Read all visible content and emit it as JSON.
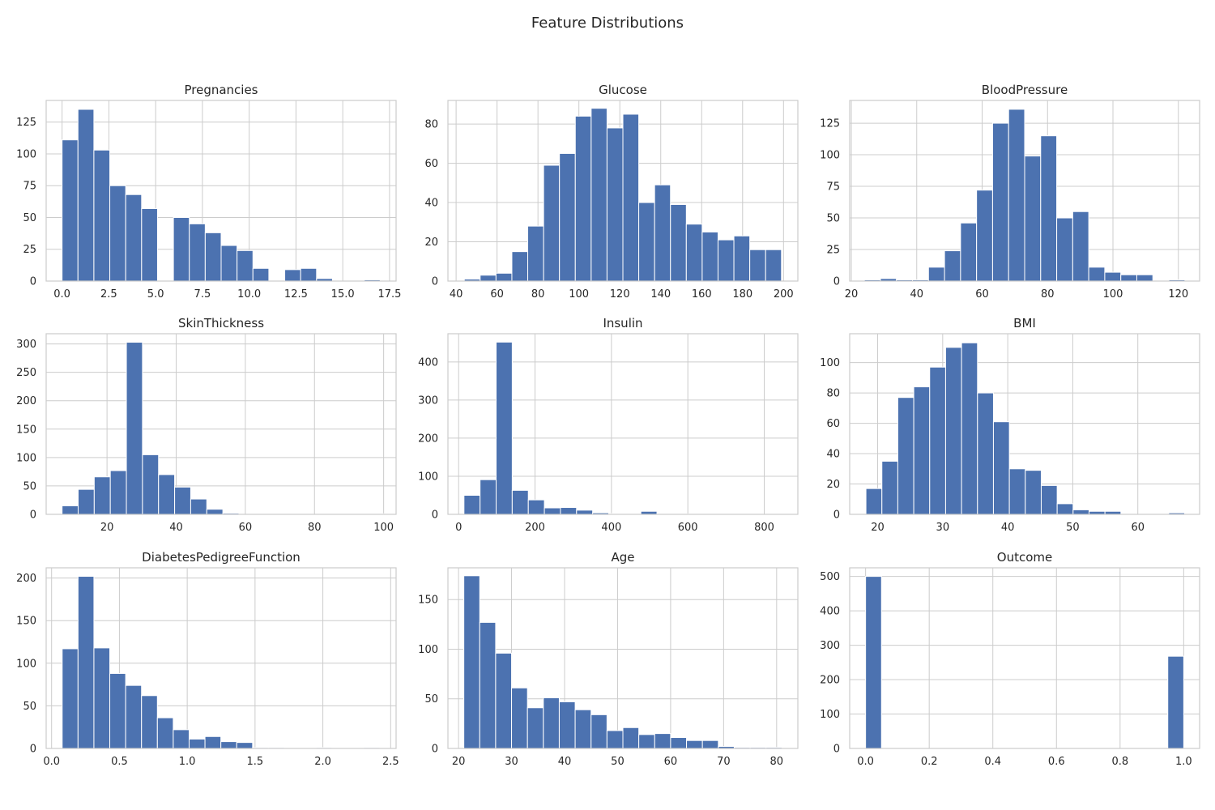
{
  "title": "Feature Distributions",
  "colors": {
    "bar": "#4c72b0",
    "grid": "#cccccc",
    "text": "#262626"
  },
  "chart_data": [
    {
      "type": "bar",
      "title": "Pregnancies",
      "xlim": [
        -0.85,
        17.85
      ],
      "ylim": [
        0,
        142
      ],
      "xticks": [
        "0.0",
        "2.5",
        "5.0",
        "7.5",
        "10.0",
        "12.5",
        "15.0",
        "17.5"
      ],
      "yticks": [
        "0",
        "25",
        "50",
        "75",
        "100",
        "125"
      ],
      "bin_edges": [
        0,
        0.85,
        1.7,
        2.55,
        3.4,
        4.25,
        5.1,
        5.95,
        6.8,
        7.65,
        8.5,
        9.35,
        10.2,
        11.05,
        11.9,
        12.75,
        13.6,
        14.45,
        15.3,
        16.15,
        17.0
      ],
      "values": [
        111,
        135,
        103,
        75,
        68,
        57,
        0,
        50,
        45,
        38,
        28,
        24,
        10,
        0,
        9,
        10,
        2,
        0,
        0,
        1
      ]
    },
    {
      "type": "bar",
      "title": "Glucose",
      "xlim": [
        36.0,
        207.0
      ],
      "ylim": [
        0,
        92
      ],
      "xticks": [
        "40",
        "60",
        "80",
        "100",
        "120",
        "140",
        "160",
        "180",
        "200"
      ],
      "yticks": [
        "0",
        "20",
        "40",
        "60",
        "80"
      ],
      "bin_edges": [
        44,
        51.75,
        59.5,
        67.25,
        75,
        82.75,
        90.5,
        98.25,
        106,
        113.75,
        121.5,
        129.25,
        137,
        144.75,
        152.5,
        160.25,
        168,
        175.75,
        183.5,
        191.25,
        199
      ],
      "values": [
        1,
        3,
        4,
        15,
        28,
        59,
        65,
        84,
        88,
        78,
        85,
        40,
        49,
        39,
        29,
        25,
        21,
        23,
        16,
        16
      ]
    },
    {
      "type": "bar",
      "title": "BloodPressure",
      "xlim": [
        19.5,
        126.5
      ],
      "ylim": [
        0,
        143
      ],
      "xticks": [
        "20",
        "40",
        "60",
        "80",
        "100",
        "120"
      ],
      "yticks": [
        "0",
        "25",
        "50",
        "75",
        "100",
        "125"
      ],
      "bin_edges": [
        24,
        28.9,
        33.8,
        38.7,
        43.6,
        48.5,
        53.4,
        58.3,
        63.2,
        68.1,
        73,
        77.9,
        82.8,
        87.7,
        92.6,
        97.5,
        102.4,
        107.3,
        112.2,
        117.1,
        122
      ],
      "values": [
        1,
        2,
        1,
        1,
        11,
        24,
        46,
        72,
        125,
        136,
        99,
        115,
        50,
        55,
        11,
        7,
        5,
        5,
        0,
        1
      ]
    },
    {
      "type": "bar",
      "title": "SkinThickness",
      "xlim": [
        2.4,
        103.6
      ],
      "ylim": [
        0,
        318
      ],
      "xticks": [
        "20",
        "40",
        "60",
        "80",
        "100"
      ],
      "yticks": [
        "0",
        "50",
        "100",
        "150",
        "200",
        "250",
        "300"
      ],
      "bin_edges": [
        7,
        11.65,
        16.3,
        20.95,
        25.6,
        30.25,
        34.9,
        39.55,
        44.2,
        48.85,
        53.5,
        58.15,
        62.8,
        67.45,
        72.1,
        76.75,
        81.4,
        86.05,
        90.7,
        95.35,
        100
      ],
      "values": [
        15,
        44,
        66,
        77,
        303,
        105,
        70,
        48,
        27,
        9,
        2,
        0,
        0,
        0,
        0,
        0,
        0,
        0,
        0,
        1
      ]
    },
    {
      "type": "bar",
      "title": "Insulin",
      "xlim": [
        -28.0,
        888.0
      ],
      "ylim": [
        0,
        474
      ],
      "xticks": [
        "0",
        "200",
        "400",
        "600",
        "800"
      ],
      "yticks": [
        "0",
        "100",
        "200",
        "300",
        "400"
      ],
      "bin_edges": [
        14,
        56.1,
        98.2,
        140.3,
        182.4,
        224.5,
        266.6,
        308.7,
        350.8,
        392.9,
        435,
        477.1,
        519.2,
        561.3,
        603.4,
        645.5,
        687.6,
        729.7,
        771.8,
        813.9,
        856
      ],
      "values": [
        50,
        91,
        452,
        63,
        38,
        17,
        18,
        11,
        4,
        2,
        2,
        8,
        2,
        1,
        2,
        1,
        0,
        1,
        0,
        1
      ]
    },
    {
      "type": "bar",
      "title": "BMI",
      "xlim": [
        15.7,
        69.5
      ],
      "ylim": [
        0,
        119
      ],
      "xticks": [
        "20",
        "30",
        "40",
        "50",
        "60"
      ],
      "yticks": [
        "0",
        "20",
        "40",
        "60",
        "80",
        "100"
      ],
      "bin_edges": [
        18.2,
        20.65,
        23.1,
        25.55,
        28,
        30.45,
        32.9,
        35.35,
        37.8,
        40.25,
        42.7,
        45.15,
        47.6,
        50.05,
        52.5,
        54.95,
        57.4,
        59.85,
        62.3,
        64.75,
        67.2
      ],
      "values": [
        17,
        35,
        77,
        84,
        97,
        110,
        113,
        80,
        61,
        30,
        29,
        19,
        7,
        3,
        2,
        2,
        0,
        0,
        0,
        1
      ]
    },
    {
      "type": "bar",
      "title": "DiabetesPedigreeFunction",
      "xlim": [
        -0.04,
        2.54
      ],
      "ylim": [
        0,
        212
      ],
      "xticks": [
        "0.0",
        "0.5",
        "1.0",
        "1.5",
        "2.0",
        "2.5"
      ],
      "yticks": [
        "0",
        "50",
        "100",
        "150",
        "200"
      ],
      "bin_edges": [
        0.078,
        0.195,
        0.312,
        0.429,
        0.546,
        0.663,
        0.78,
        0.897,
        1.014,
        1.131,
        1.248,
        1.365,
        1.482,
        1.599,
        1.716,
        1.833,
        1.95,
        2.067,
        2.184,
        2.301,
        2.42
      ],
      "values": [
        117,
        202,
        118,
        88,
        74,
        62,
        36,
        22,
        11,
        14,
        8,
        7,
        1,
        1,
        0,
        0,
        1,
        0,
        0,
        1
      ]
    },
    {
      "type": "bar",
      "title": "Age",
      "xlim": [
        18.0,
        84.0
      ],
      "ylim": [
        0,
        182
      ],
      "xticks": [
        "20",
        "30",
        "40",
        "50",
        "60",
        "70",
        "80"
      ],
      "yticks": [
        "0",
        "50",
        "100",
        "150"
      ],
      "bin_edges": [
        21,
        24,
        27,
        30,
        33,
        36,
        39,
        42,
        45,
        48,
        51,
        54,
        57,
        60,
        63,
        66,
        69,
        72,
        75,
        78,
        81
      ],
      "values": [
        174,
        127,
        96,
        61,
        41,
        51,
        47,
        39,
        34,
        18,
        21,
        14,
        15,
        11,
        8,
        8,
        2,
        1,
        1,
        1
      ]
    },
    {
      "type": "bar",
      "title": "Outcome",
      "xlim": [
        -0.05,
        1.05
      ],
      "ylim": [
        0,
        525
      ],
      "xticks": [
        "0.0",
        "0.2",
        "0.4",
        "0.6",
        "0.8",
        "1.0"
      ],
      "yticks": [
        "0",
        "100",
        "200",
        "300",
        "400",
        "500"
      ],
      "bin_edges": [
        0,
        0.05,
        0.1,
        0.15,
        0.2,
        0.25,
        0.3,
        0.35,
        0.4,
        0.45,
        0.5,
        0.55,
        0.6,
        0.65,
        0.7,
        0.75,
        0.8,
        0.85,
        0.9,
        0.95,
        1.0
      ],
      "values": [
        500,
        0,
        0,
        0,
        0,
        0,
        0,
        0,
        0,
        0,
        0,
        0,
        0,
        0,
        0,
        0,
        0,
        0,
        0,
        268
      ]
    }
  ]
}
